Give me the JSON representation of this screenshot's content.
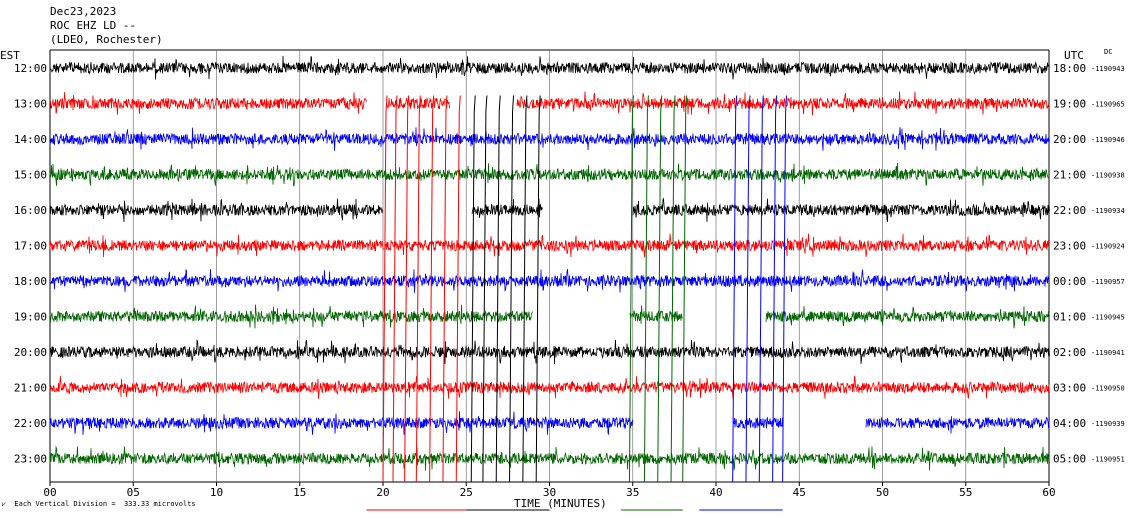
{
  "header": {
    "date": "Dec23,2023",
    "station": "ROC EHZ LD --",
    "network": "(LDEO, Rochester)"
  },
  "timezones": {
    "left": "EST",
    "right": "UTC",
    "dc": "DC"
  },
  "footer": {
    "scale_note": "Each Vertical Division =  333.33 microvolts",
    "scale_mark": "⩗"
  },
  "colors": {
    "black": "#000000",
    "red": "#ff0000",
    "blue": "#0000ff",
    "green": "#006600",
    "grid": "#000000"
  },
  "chart_data": {
    "type": "line",
    "title": "",
    "xlabel": "TIME (MINUTES)",
    "ylabel": "",
    "xlim": [
      0,
      60
    ],
    "x_ticks": [
      "00",
      "05",
      "10",
      "15",
      "20",
      "25",
      "30",
      "35",
      "40",
      "45",
      "50",
      "55",
      "60"
    ],
    "grid": "vertical lines every 5 minutes",
    "rows": [
      {
        "est": "12:00",
        "utc": "18:00",
        "dc": "-1190943",
        "color": "black",
        "gaps": []
      },
      {
        "est": "13:00",
        "utc": "19:00",
        "dc": "-1190965",
        "color": "red",
        "gaps": [
          [
            19.0,
            20.2
          ],
          [
            24.0,
            28.0
          ]
        ]
      },
      {
        "est": "14:00",
        "utc": "20:00",
        "dc": "-1190946",
        "color": "blue",
        "gaps": []
      },
      {
        "est": "15:00",
        "utc": "21:00",
        "dc": "-1190938",
        "color": "green",
        "gaps": []
      },
      {
        "est": "16:00",
        "utc": "22:00",
        "dc": "-1190934",
        "color": "black",
        "gaps": [
          [
            20.0,
            25.3
          ],
          [
            29.6,
            35.0
          ]
        ]
      },
      {
        "est": "17:00",
        "utc": "23:00",
        "dc": "-1190924",
        "color": "red",
        "gaps": []
      },
      {
        "est": "18:00",
        "utc": "00:00",
        "dc": "-1190957",
        "color": "blue",
        "gaps": []
      },
      {
        "est": "19:00",
        "utc": "01:00",
        "dc": "-1190945",
        "color": "green",
        "gaps": [
          [
            29.0,
            34.8
          ],
          [
            38.0,
            43.0
          ]
        ]
      },
      {
        "est": "20:00",
        "utc": "02:00",
        "dc": "-1190941",
        "color": "black",
        "gaps": []
      },
      {
        "est": "21:00",
        "utc": "03:00",
        "dc": "-1190950",
        "color": "red",
        "gaps": []
      },
      {
        "est": "22:00",
        "utc": "04:00",
        "dc": "-1190939",
        "color": "blue",
        "gaps": [
          [
            35.0,
            41.0
          ],
          [
            44.0,
            49.0
          ]
        ]
      },
      {
        "est": "23:00",
        "utc": "05:00",
        "dc": "-1190951",
        "color": "green",
        "gaps": []
      }
    ],
    "event_spikes": [
      {
        "color": "red",
        "minutes": [
          20.0,
          20.6,
          21.3,
          22.0,
          22.8,
          23.6,
          24.4
        ]
      },
      {
        "color": "black",
        "minutes": [
          25.3,
          26.0,
          26.8,
          27.6,
          28.4,
          29.2
        ]
      },
      {
        "color": "green",
        "minutes": [
          34.8,
          35.7,
          36.5,
          37.3,
          38.0
        ]
      },
      {
        "color": "blue",
        "minutes": [
          41.0,
          41.8,
          42.6,
          43.4,
          44.0
        ]
      }
    ]
  }
}
